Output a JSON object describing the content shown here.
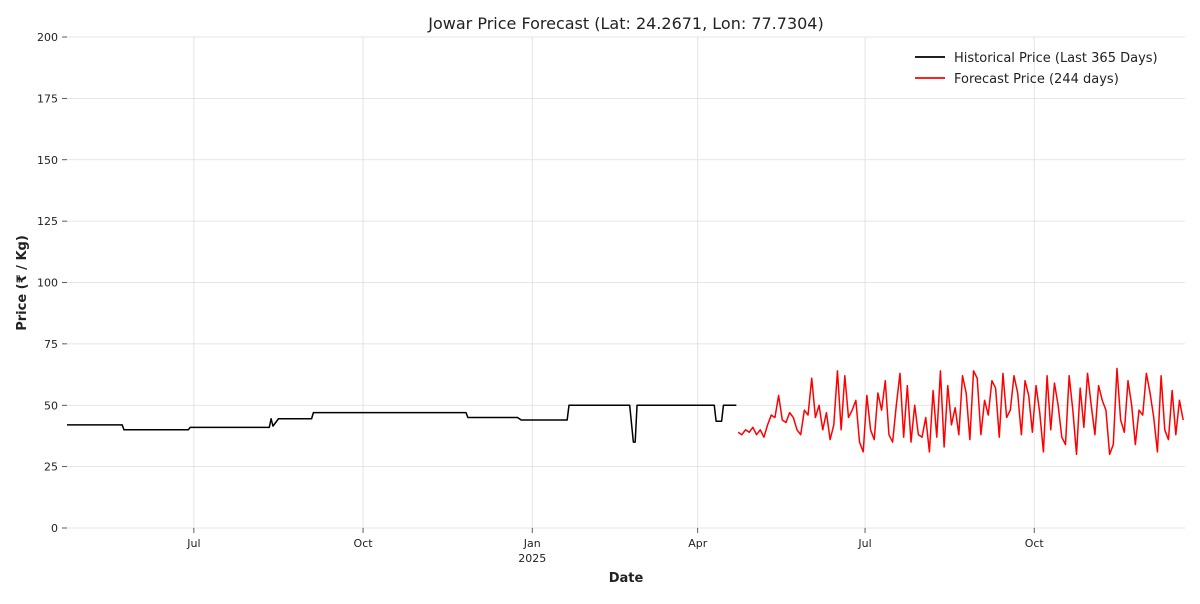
{
  "chart_data": {
    "type": "line",
    "title": "Jowar Price Forecast (Lat: 24.2671, Lon: 77.7304)",
    "x_label": "Date",
    "y_label": "Price (₹ / Kg)",
    "xlim": [
      0,
      608
    ],
    "ylim": [
      0,
      200
    ],
    "xticks": [
      {
        "value": 69,
        "label": "Jul"
      },
      {
        "value": 161,
        "label": "Oct"
      },
      {
        "value": 253,
        "label": "Jan\n2025"
      },
      {
        "value": 343,
        "label": "Apr"
      },
      {
        "value": 434,
        "label": "Jul"
      },
      {
        "value": 526,
        "label": "Oct"
      }
    ],
    "yticks": [
      0,
      25,
      50,
      75,
      100,
      125,
      150,
      175,
      200
    ],
    "grid": true,
    "legend": "upper right",
    "series": [
      {
        "name": "Historical Price (Last 365 Days)",
        "color": "#000000",
        "x": [
          0,
          30,
          31,
          66,
          67,
          110,
          111,
          112,
          115,
          133,
          134,
          217,
          218,
          245,
          247,
          272,
          273,
          306,
          308,
          309,
          310,
          352,
          353,
          356,
          357,
          364
        ],
        "values": [
          42,
          42,
          40,
          40,
          41,
          41,
          44.5,
          41.5,
          44.5,
          44.5,
          47,
          47,
          45,
          45,
          44,
          44,
          50,
          50,
          35,
          35,
          50,
          50,
          43.5,
          43.5,
          50,
          50
        ]
      },
      {
        "name": "Forecast Price (244 days)",
        "color": "#ff0000",
        "x": [
          365,
          367,
          369,
          371,
          373,
          375,
          377,
          379,
          381,
          383,
          385,
          387,
          389,
          391,
          393,
          395,
          397,
          399,
          401,
          403,
          405,
          407,
          409,
          411,
          413,
          415,
          417,
          419,
          421,
          423,
          425,
          427,
          429,
          431,
          433,
          435,
          437,
          439,
          441,
          443,
          445,
          447,
          449,
          451,
          453,
          455,
          457,
          459,
          461,
          463,
          465,
          467,
          469,
          471,
          473,
          475,
          477,
          479,
          481,
          483,
          485,
          487,
          489,
          491,
          493,
          495,
          497,
          499,
          501,
          503,
          505,
          507,
          509,
          511,
          513,
          515,
          517,
          519,
          521,
          523,
          525,
          527,
          529,
          531,
          533,
          535,
          537,
          539,
          541,
          543,
          545,
          547,
          549,
          551,
          553,
          555,
          557,
          559,
          561,
          563,
          565,
          567,
          569,
          571,
          573,
          575,
          577,
          579,
          581,
          583,
          585,
          587,
          589,
          591,
          593,
          595,
          597,
          599,
          601,
          603,
          605,
          607
        ],
        "values": [
          39,
          38,
          40,
          39,
          41,
          38,
          40,
          37,
          42,
          46,
          45,
          54,
          44,
          43,
          47,
          45,
          40,
          38,
          48,
          46,
          61,
          45,
          50,
          40,
          47,
          36,
          42,
          64,
          40,
          62,
          45,
          48,
          52,
          35,
          31,
          54,
          40,
          36,
          55,
          48,
          60,
          38,
          35,
          50,
          63,
          37,
          58,
          35,
          50,
          38,
          37,
          45,
          31,
          56,
          37,
          64,
          33,
          58,
          42,
          49,
          38,
          62,
          55,
          36,
          64,
          61,
          38,
          52,
          46,
          60,
          57,
          37,
          63,
          45,
          48,
          62,
          55,
          38,
          60,
          54,
          39,
          58,
          47,
          31,
          62,
          40,
          59,
          50,
          37,
          34,
          62,
          48,
          30,
          57,
          41,
          63,
          50,
          38,
          58,
          52,
          48,
          30,
          34,
          65,
          44,
          39,
          60,
          50,
          34,
          48,
          46,
          63,
          55,
          45,
          31,
          62,
          40,
          36,
          56,
          38,
          52,
          44
        ]
      }
    ]
  }
}
